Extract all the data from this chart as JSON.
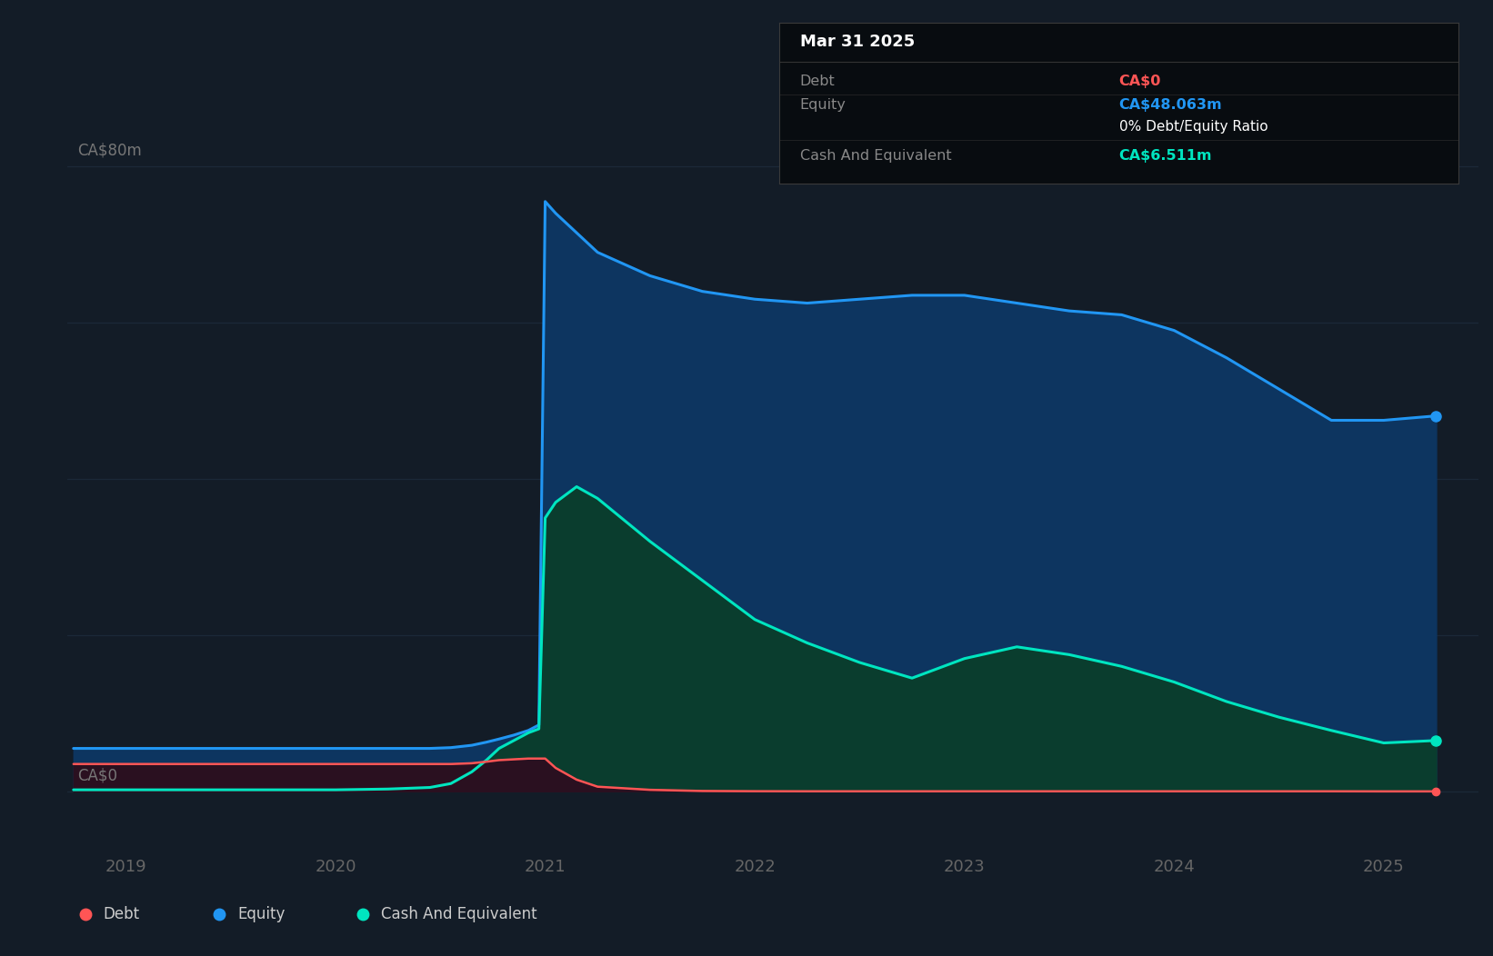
{
  "bg_color": "#131c27",
  "plot_bg_color": "#131c27",
  "grid_color": "#1e2d3d",
  "equity_color": "#2196f3",
  "cash_color": "#00e5c0",
  "debt_color": "#ff5555",
  "equity_fill": "#0d3560",
  "cash_fill": "#0a3d2e",
  "debt_fill": "#2a1020",
  "xlim": [
    2018.72,
    2025.45
  ],
  "ylim": [
    -7,
    86
  ],
  "x_ticks": [
    2019,
    2020,
    2021,
    2022,
    2023,
    2024,
    2025
  ],
  "y_label_80": "CA$80m",
  "y_label_0": "CA$0",
  "time_points": [
    2018.75,
    2018.9,
    2019.0,
    2019.25,
    2019.5,
    2019.75,
    2020.0,
    2020.25,
    2020.45,
    2020.55,
    2020.65,
    2020.72,
    2020.78,
    2020.85,
    2020.92,
    2020.97,
    2021.0,
    2021.05,
    2021.15,
    2021.25,
    2021.5,
    2021.75,
    2022.0,
    2022.25,
    2022.5,
    2022.75,
    2023.0,
    2023.25,
    2023.5,
    2023.75,
    2024.0,
    2024.25,
    2024.5,
    2024.75,
    2025.0,
    2025.25
  ],
  "equity_values": [
    5.5,
    5.5,
    5.5,
    5.5,
    5.5,
    5.5,
    5.5,
    5.5,
    5.5,
    5.6,
    5.9,
    6.3,
    6.7,
    7.2,
    7.8,
    8.5,
    75.5,
    74.0,
    71.5,
    69.0,
    66.0,
    64.0,
    63.0,
    62.5,
    63.0,
    63.5,
    63.5,
    62.5,
    61.5,
    61.0,
    59.0,
    55.5,
    51.5,
    47.5,
    47.5,
    48.063
  ],
  "cash_values": [
    0.2,
    0.2,
    0.2,
    0.2,
    0.2,
    0.2,
    0.2,
    0.3,
    0.5,
    1.0,
    2.5,
    4.0,
    5.5,
    6.5,
    7.5,
    8.0,
    35.0,
    37.0,
    39.0,
    37.5,
    32.0,
    27.0,
    22.0,
    19.0,
    16.5,
    14.5,
    17.0,
    18.5,
    17.5,
    16.0,
    14.0,
    11.5,
    9.5,
    7.8,
    6.2,
    6.511
  ],
  "debt_values": [
    3.5,
    3.5,
    3.5,
    3.5,
    3.5,
    3.5,
    3.5,
    3.5,
    3.5,
    3.5,
    3.6,
    3.8,
    4.0,
    4.1,
    4.2,
    4.2,
    4.2,
    3.0,
    1.5,
    0.6,
    0.2,
    0.05,
    0.02,
    0.01,
    0.01,
    0.01,
    0.01,
    0.01,
    0.01,
    0.01,
    0.01,
    0.01,
    0.01,
    0.01,
    0.0,
    0.0
  ],
  "legend_labels": [
    "Debt",
    "Equity",
    "Cash And Equivalent"
  ],
  "legend_colors": [
    "#ff5555",
    "#2196f3",
    "#00e5c0"
  ],
  "legend_bg": "#1a2535",
  "tooltip_title": "Mar 31 2025",
  "tooltip_bg": "#080c10",
  "tooltip_border": "#3a3a3a",
  "tooltip_rows": [
    {
      "label": "Debt",
      "value": "CA$0",
      "value_color": "#ff5555",
      "divider_after": true
    },
    {
      "label": "Equity",
      "value": "CA$48.063m",
      "value_color": "#2196f3",
      "divider_after": false
    },
    {
      "label": "",
      "value": "0% Debt/Equity Ratio",
      "value_color": "#ffffff",
      "divider_after": true
    },
    {
      "label": "Cash And Equivalent",
      "value": "CA$6.511m",
      "value_color": "#00e5c0",
      "divider_after": false
    }
  ]
}
